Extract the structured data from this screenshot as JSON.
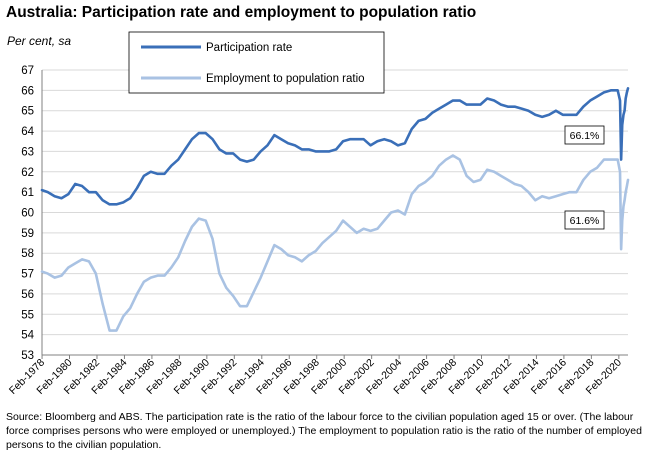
{
  "title": "Australia: Participation rate and employment to population ratio",
  "subtitle": "Per cent, sa",
  "source": "Source: Bloomberg and ABS.  The participation rate is the ratio of the labour force to the civilian population aged 15 or over.  (The labour force comprises persons who were employed or unemployed.)  The employment to population ratio is the ratio of the number of employed persons to the civilian population.",
  "colors": {
    "participation": "#3a6fb8",
    "employment": "#a9c2e3",
    "grid": "#d9d9d9",
    "axis": "#808080"
  },
  "chart_data": {
    "type": "line",
    "title": "Australia: Participation rate and employment to population ratio",
    "ylabel": "Per cent, sa",
    "xlabel": "",
    "ylim": [
      53,
      67
    ],
    "yticks": [
      53,
      54,
      55,
      56,
      57,
      58,
      59,
      60,
      61,
      62,
      63,
      64,
      65,
      66,
      67
    ],
    "xlim": [
      1978.08,
      2020.75
    ],
    "xticks": [
      "Feb-1978",
      "Feb-1980",
      "Feb-1982",
      "Feb-1984",
      "Feb-1986",
      "Feb-1988",
      "Feb-1990",
      "Feb-1992",
      "Feb-1994",
      "Feb-1996",
      "Feb-1998",
      "Feb-2000",
      "Feb-2002",
      "Feb-2004",
      "Feb-2006",
      "Feb-2008",
      "Feb-2010",
      "Feb-2012",
      "Feb-2014",
      "Feb-2016",
      "Feb-2018",
      "Feb-2020"
    ],
    "grid": true,
    "legend_position": "top-center",
    "series": [
      {
        "name": "Participation rate",
        "x": [
          1978.08,
          1978.5,
          1979.0,
          1979.5,
          1980.0,
          1980.5,
          1981.0,
          1981.5,
          1982.0,
          1982.5,
          1983.0,
          1983.5,
          1984.0,
          1984.5,
          1985.0,
          1985.5,
          1986.0,
          1986.5,
          1987.0,
          1987.5,
          1988.0,
          1988.5,
          1989.0,
          1989.5,
          1990.0,
          1990.5,
          1991.0,
          1991.5,
          1992.0,
          1992.5,
          1993.0,
          1993.5,
          1994.0,
          1994.5,
          1995.0,
          1995.5,
          1996.0,
          1996.5,
          1997.0,
          1997.5,
          1998.0,
          1998.5,
          1999.0,
          1999.5,
          2000.0,
          2000.5,
          2001.0,
          2001.5,
          2002.0,
          2002.5,
          2003.0,
          2003.5,
          2004.0,
          2004.5,
          2005.0,
          2005.5,
          2006.0,
          2006.5,
          2007.0,
          2007.5,
          2008.0,
          2008.5,
          2009.0,
          2009.5,
          2010.0,
          2010.5,
          2011.0,
          2011.5,
          2012.0,
          2012.5,
          2013.0,
          2013.5,
          2014.0,
          2014.5,
          2015.0,
          2015.5,
          2016.0,
          2016.5,
          2017.0,
          2017.5,
          2018.0,
          2018.5,
          2019.0,
          2019.5,
          2020.0,
          2020.17,
          2020.25,
          2020.33,
          2020.42,
          2020.5,
          2020.58,
          2020.67,
          2020.75
        ],
        "values": [
          61.1,
          61.0,
          60.8,
          60.7,
          60.9,
          61.4,
          61.3,
          61.0,
          61.0,
          60.6,
          60.4,
          60.4,
          60.5,
          60.7,
          61.2,
          61.8,
          62.0,
          61.9,
          61.9,
          62.3,
          62.6,
          63.1,
          63.6,
          63.9,
          63.9,
          63.6,
          63.1,
          62.9,
          62.9,
          62.6,
          62.5,
          62.6,
          63.0,
          63.3,
          63.8,
          63.6,
          63.4,
          63.3,
          63.1,
          63.1,
          63.0,
          63.0,
          63.0,
          63.1,
          63.5,
          63.6,
          63.6,
          63.6,
          63.3,
          63.5,
          63.6,
          63.5,
          63.3,
          63.4,
          64.1,
          64.5,
          64.6,
          64.9,
          65.1,
          65.3,
          65.5,
          65.5,
          65.3,
          65.3,
          65.3,
          65.6,
          65.5,
          65.3,
          65.2,
          65.2,
          65.1,
          65.0,
          64.8,
          64.7,
          64.8,
          65.0,
          64.8,
          64.8,
          64.8,
          65.2,
          65.5,
          65.7,
          65.9,
          66.0,
          66.0,
          65.5,
          62.6,
          64.3,
          64.8,
          65.0,
          65.6,
          65.9,
          66.1
        ]
      },
      {
        "name": "Employment to population ratio",
        "x": [
          1978.08,
          1978.5,
          1979.0,
          1979.5,
          1980.0,
          1980.5,
          1981.0,
          1981.5,
          1982.0,
          1982.5,
          1983.0,
          1983.5,
          1984.0,
          1984.5,
          1985.0,
          1985.5,
          1986.0,
          1986.5,
          1987.0,
          1987.5,
          1988.0,
          1988.5,
          1989.0,
          1989.5,
          1990.0,
          1990.5,
          1991.0,
          1991.5,
          1992.0,
          1992.5,
          1993.0,
          1993.5,
          1994.0,
          1994.5,
          1995.0,
          1995.5,
          1996.0,
          1996.5,
          1997.0,
          1997.5,
          1998.0,
          1998.5,
          1999.0,
          1999.5,
          2000.0,
          2000.5,
          2001.0,
          2001.5,
          2002.0,
          2002.5,
          2003.0,
          2003.5,
          2004.0,
          2004.5,
          2005.0,
          2005.5,
          2006.0,
          2006.5,
          2007.0,
          2007.5,
          2008.0,
          2008.5,
          2009.0,
          2009.5,
          2010.0,
          2010.5,
          2011.0,
          2011.5,
          2012.0,
          2012.5,
          2013.0,
          2013.5,
          2014.0,
          2014.5,
          2015.0,
          2015.5,
          2016.0,
          2016.5,
          2017.0,
          2017.5,
          2018.0,
          2018.5,
          2019.0,
          2019.5,
          2020.0,
          2020.17,
          2020.25,
          2020.33,
          2020.42,
          2020.5,
          2020.58,
          2020.67,
          2020.75
        ],
        "values": [
          57.1,
          57.0,
          56.8,
          56.9,
          57.3,
          57.5,
          57.7,
          57.6,
          57.0,
          55.5,
          54.2,
          54.2,
          54.9,
          55.3,
          56.0,
          56.6,
          56.8,
          56.9,
          56.9,
          57.3,
          57.8,
          58.6,
          59.3,
          59.7,
          59.6,
          58.7,
          57.0,
          56.3,
          55.9,
          55.4,
          55.4,
          56.1,
          56.8,
          57.6,
          58.4,
          58.2,
          57.9,
          57.8,
          57.6,
          57.9,
          58.1,
          58.5,
          58.8,
          59.1,
          59.6,
          59.3,
          59.0,
          59.2,
          59.1,
          59.2,
          59.6,
          60.0,
          60.1,
          59.9,
          60.9,
          61.3,
          61.5,
          61.8,
          62.3,
          62.6,
          62.8,
          62.6,
          61.8,
          61.5,
          61.6,
          62.1,
          62.0,
          61.8,
          61.6,
          61.4,
          61.3,
          61.0,
          60.6,
          60.8,
          60.7,
          60.8,
          60.9,
          61.0,
          61.0,
          61.6,
          62.0,
          62.2,
          62.6,
          62.6,
          62.6,
          62.0,
          58.2,
          59.6,
          60.3,
          60.6,
          61.0,
          61.3,
          61.6
        ]
      }
    ],
    "annotations": [
      {
        "text": "66.1%",
        "series": "Participation rate"
      },
      {
        "text": "61.6%",
        "series": "Employment to population ratio"
      }
    ]
  }
}
